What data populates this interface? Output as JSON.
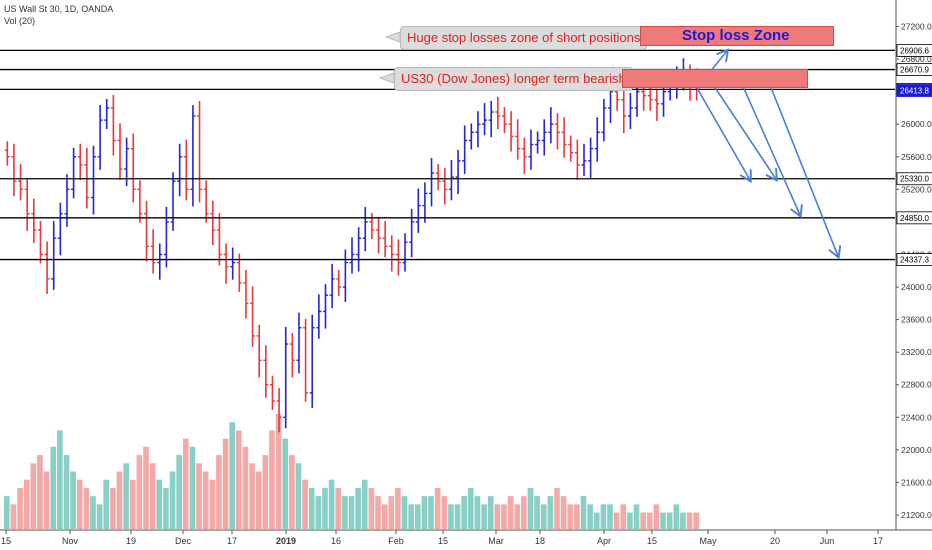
{
  "header": {
    "symbol_line": "US Wall St 30, 1D, OANDA",
    "volume_line": "Vol (20)"
  },
  "annotations": {
    "callout_top": "Huge stop losses zone of short positions",
    "callout_mid": "US30 (Dow Jones) longer term bearish",
    "stop_loss_label": "Stop loss Zone"
  },
  "colors": {
    "up": "#2424d6",
    "down": "#e8383d",
    "vol_up": "#88cfc6",
    "vol_down": "#f4a9a9",
    "arrow": "#4a7fd6",
    "zone": "#f07a7a",
    "price_badge": "#1a1ad6"
  },
  "chart_data": {
    "type": "candlestick",
    "title": "US Wall St 30, 1D, OANDA",
    "volume_indicator": "Vol (20)",
    "x_tick_labels": [
      "15",
      "Nov",
      "19",
      "Dec",
      "17",
      "2019",
      "16",
      "Feb",
      "15",
      "Mar",
      "18",
      "Apr",
      "15",
      "May",
      "20",
      "Jun",
      "17"
    ],
    "y_tick_labels": [
      "27200.0",
      "26800.0",
      "26000.0",
      "25600.0",
      "25200.0",
      "24400.0",
      "24000.0",
      "23600.0",
      "23200.0",
      "22800.0",
      "22400.0",
      "22000.0",
      "21600.0",
      "21200.0"
    ],
    "y_range": [
      21000,
      27400
    ],
    "price_marks": [
      {
        "label": "26906.6",
        "value": 26906.6
      },
      {
        "label": "26670.9",
        "value": 26670.9
      },
      {
        "label": "26427.3",
        "value": 26427.3
      },
      {
        "label": "26413.8",
        "value": 26413.8
      },
      {
        "label": "25330.0",
        "value": 25330.0
      },
      {
        "label": "24850.0",
        "value": 24850.0
      },
      {
        "label": "24337.3",
        "value": 24337.3
      }
    ],
    "horizontal_levels": [
      26906.6,
      26670.9,
      26427.3,
      25330.0,
      24850.0,
      24337.3
    ],
    "stop_loss_zone_prices": [
      26460,
      26700
    ],
    "stop_loss_label_zone_prices": [
      26970,
      27200
    ],
    "price_path": [
      25600,
      25300,
      25200,
      24900,
      24700,
      24400,
      24100,
      24600,
      24900,
      25200,
      25600,
      25500,
      25100,
      25600,
      26050,
      26200,
      25800,
      25450,
      25700,
      25200,
      24900,
      24500,
      24300,
      24400,
      24800,
      25300,
      25600,
      25200,
      26100,
      25200,
      24900,
      24700,
      24400,
      24250,
      24300,
      24050,
      23800,
      23400,
      23100,
      22800,
      22600,
      22400,
      23300,
      23100,
      23500,
      22700,
      23500,
      23700,
      23900,
      24100,
      24000,
      24300,
      24400,
      24600,
      24800,
      24700,
      24600,
      24500,
      24400,
      24300,
      24550,
      24800,
      25000,
      25150,
      25400,
      25300,
      25200,
      25350,
      25550,
      25800,
      25900,
      26000,
      26050,
      26150,
      26100,
      26000,
      25850,
      25700,
      25600,
      25750,
      25800,
      25900,
      26000,
      25900,
      25750,
      25650,
      25500,
      25550,
      25700,
      25900,
      26200,
      26400,
      26300,
      26100,
      26200,
      26400,
      26350,
      26300,
      26250,
      26400,
      26500,
      26550,
      26600,
      26500,
      26450
    ],
    "volume_path": [
      4,
      3,
      5,
      6,
      8,
      9,
      7,
      10,
      12,
      9,
      7,
      6,
      5,
      4,
      3,
      6,
      5,
      7,
      8,
      6,
      9,
      10,
      8,
      6,
      5,
      7,
      9,
      11,
      10,
      8,
      7,
      6,
      9,
      11,
      13,
      12,
      10,
      8,
      7,
      9,
      12,
      14,
      11,
      9,
      8,
      6,
      5,
      4,
      5,
      6,
      5,
      4,
      4,
      5,
      6,
      5,
      4,
      3,
      4,
      5,
      4,
      3,
      3,
      4,
      4,
      5,
      4,
      3,
      3,
      4,
      5,
      4,
      3,
      4,
      3,
      3,
      4,
      3,
      4,
      5,
      4,
      3,
      4,
      5,
      4,
      3,
      3,
      4,
      3,
      2,
      3,
      3,
      2,
      3,
      2,
      3,
      2,
      2,
      3,
      2,
      2,
      3,
      2,
      2,
      2
    ],
    "projection_arrows": [
      {
        "from": [
          697,
          88
        ],
        "to": [
          727,
          51
        ]
      },
      {
        "from": [
          697,
          88
        ],
        "to": [
          750,
          180
        ]
      },
      {
        "from": [
          712,
          83
        ],
        "to": [
          776,
          179
        ]
      },
      {
        "from": [
          738,
          75
        ],
        "to": [
          800,
          215
        ]
      },
      {
        "from": [
          770,
          85
        ],
        "to": [
          838,
          256
        ]
      }
    ]
  }
}
